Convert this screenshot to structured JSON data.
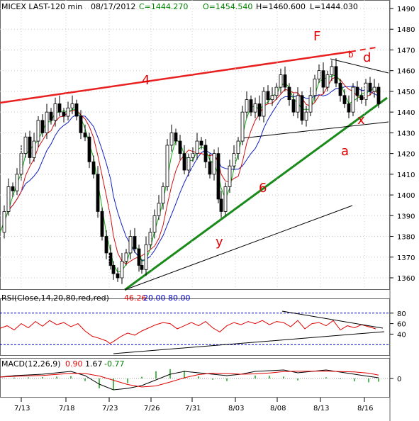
{
  "chart_data": {
    "type": "candlestick",
    "header": {
      "symbol": "MICEX LAST-120 min",
      "date": "08/17/2012",
      "close": "C=1444.270",
      "open": "O=1454.540",
      "high": "H=1460.600",
      "low": "L=1444.030"
    },
    "price_axis": {
      "ticks": [
        "1490",
        "1480",
        "1470",
        "1460",
        "1450",
        "1440",
        "1430",
        "1420",
        "1410",
        "1400",
        "1390",
        "1380",
        "1370",
        "1360"
      ],
      "ylim": [
        1352,
        1493
      ]
    },
    "x_ticks": [
      "7/13",
      "7/18",
      "7/23",
      "7/26",
      "7/31",
      "8/03",
      "8/08",
      "8/13",
      "8/16"
    ],
    "annotations": {
      "F": "F",
      "four": "4",
      "six": "6",
      "b": "b",
      "d": "d",
      "x": "x",
      "a": "a",
      "y": "y"
    },
    "rsi": {
      "label": "RSI(Close,14,20,80,red,red)",
      "value": "46.26",
      "low": "20.00",
      "high": "80.00",
      "ticks": [
        "80",
        "60",
        "40"
      ]
    },
    "macd": {
      "label": "MACD(12,26,9)",
      "v1": "0.90",
      "v2": "1.67",
      "v3": "-0.77",
      "ticks": [
        "0"
      ]
    },
    "price_path": [
      [
        0,
        1382
      ],
      [
        6,
        1392
      ],
      [
        12,
        1404
      ],
      [
        18,
        1402
      ],
      [
        24,
        1410
      ],
      [
        30,
        1420
      ],
      [
        36,
        1428
      ],
      [
        42,
        1418
      ],
      [
        48,
        1426
      ],
      [
        54,
        1436
      ],
      [
        60,
        1430
      ],
      [
        66,
        1440
      ],
      [
        72,
        1436
      ],
      [
        78,
        1444
      ],
      [
        84,
        1440
      ],
      [
        90,
        1438
      ],
      [
        96,
        1442
      ],
      [
        102,
        1444
      ],
      [
        108,
        1438
      ],
      [
        114,
        1430
      ],
      [
        120,
        1428
      ],
      [
        126,
        1416
      ],
      [
        132,
        1410
      ],
      [
        138,
        1392
      ],
      [
        144,
        1380
      ],
      [
        150,
        1372
      ],
      [
        156,
        1366
      ],
      [
        160,
        1362
      ],
      [
        166,
        1360
      ],
      [
        172,
        1368
      ],
      [
        178,
        1372
      ],
      [
        184,
        1380
      ],
      [
        190,
        1374
      ],
      [
        196,
        1366
      ],
      [
        200,
        1364
      ],
      [
        206,
        1376
      ],
      [
        212,
        1382
      ],
      [
        218,
        1390
      ],
      [
        224,
        1396
      ],
      [
        230,
        1404
      ],
      [
        236,
        1424
      ],
      [
        242,
        1430
      ],
      [
        248,
        1426
      ],
      [
        254,
        1420
      ],
      [
        260,
        1412
      ],
      [
        266,
        1418
      ],
      [
        272,
        1420
      ],
      [
        278,
        1426
      ],
      [
        284,
        1424
      ],
      [
        290,
        1416
      ],
      [
        296,
        1410
      ],
      [
        302,
        1420
      ],
      [
        308,
        1398
      ],
      [
        312,
        1392
      ],
      [
        318,
        1404
      ],
      [
        324,
        1414
      ],
      [
        330,
        1420
      ],
      [
        336,
        1426
      ],
      [
        342,
        1440
      ],
      [
        348,
        1446
      ],
      [
        354,
        1440
      ],
      [
        360,
        1444
      ],
      [
        366,
        1438
      ],
      [
        372,
        1450
      ],
      [
        378,
        1446
      ],
      [
        384,
        1448
      ],
      [
        390,
        1452
      ],
      [
        396,
        1458
      ],
      [
        402,
        1452
      ],
      [
        408,
        1446
      ],
      [
        414,
        1440
      ],
      [
        420,
        1448
      ],
      [
        426,
        1436
      ],
      [
        432,
        1440
      ],
      [
        438,
        1448
      ],
      [
        444,
        1456
      ],
      [
        450,
        1460
      ],
      [
        456,
        1452
      ],
      [
        462,
        1458
      ],
      [
        468,
        1462
      ],
      [
        474,
        1454
      ],
      [
        480,
        1448
      ],
      [
        486,
        1444
      ],
      [
        492,
        1440
      ],
      [
        498,
        1452
      ],
      [
        504,
        1448
      ],
      [
        510,
        1446
      ],
      [
        516,
        1454
      ],
      [
        522,
        1450
      ],
      [
        528,
        1452
      ],
      [
        534,
        1444
      ]
    ],
    "rsi_path": [
      [
        0,
        51
      ],
      [
        10,
        56
      ],
      [
        20,
        48
      ],
      [
        30,
        60
      ],
      [
        40,
        52
      ],
      [
        50,
        64
      ],
      [
        60,
        55
      ],
      [
        70,
        66
      ],
      [
        80,
        58
      ],
      [
        90,
        62
      ],
      [
        100,
        54
      ],
      [
        110,
        60
      ],
      [
        120,
        46
      ],
      [
        130,
        36
      ],
      [
        140,
        32
      ],
      [
        150,
        27
      ],
      [
        155,
        22
      ],
      [
        160,
        26
      ],
      [
        170,
        35
      ],
      [
        180,
        42
      ],
      [
        190,
        38
      ],
      [
        200,
        46
      ],
      [
        210,
        52
      ],
      [
        220,
        58
      ],
      [
        230,
        62
      ],
      [
        240,
        60
      ],
      [
        250,
        50
      ],
      [
        260,
        56
      ],
      [
        270,
        62
      ],
      [
        280,
        56
      ],
      [
        290,
        64
      ],
      [
        300,
        52
      ],
      [
        310,
        44
      ],
      [
        320,
        56
      ],
      [
        330,
        62
      ],
      [
        340,
        58
      ],
      [
        350,
        64
      ],
      [
        360,
        60
      ],
      [
        370,
        66
      ],
      [
        380,
        58
      ],
      [
        390,
        64
      ],
      [
        400,
        62
      ],
      [
        410,
        54
      ],
      [
        420,
        66
      ],
      [
        430,
        50
      ],
      [
        440,
        60
      ],
      [
        450,
        62
      ],
      [
        460,
        56
      ],
      [
        470,
        66
      ],
      [
        480,
        48
      ],
      [
        490,
        56
      ],
      [
        500,
        52
      ],
      [
        510,
        58
      ],
      [
        520,
        54
      ],
      [
        530,
        50
      ]
    ],
    "macd_path": [
      [
        0,
        2
      ],
      [
        20,
        4
      ],
      [
        40,
        5
      ],
      [
        60,
        6
      ],
      [
        80,
        8
      ],
      [
        100,
        10
      ],
      [
        120,
        4
      ],
      [
        140,
        -8
      ],
      [
        160,
        -16
      ],
      [
        180,
        -14
      ],
      [
        200,
        -10
      ],
      [
        220,
        -2
      ],
      [
        240,
        6
      ],
      [
        260,
        10
      ],
      [
        280,
        8
      ],
      [
        300,
        6
      ],
      [
        320,
        4
      ],
      [
        340,
        6
      ],
      [
        360,
        10
      ],
      [
        380,
        11
      ],
      [
        400,
        12
      ],
      [
        420,
        8
      ],
      [
        440,
        10
      ],
      [
        460,
        12
      ],
      [
        480,
        9
      ],
      [
        500,
        6
      ],
      [
        520,
        3
      ],
      [
        534,
        1
      ]
    ]
  }
}
